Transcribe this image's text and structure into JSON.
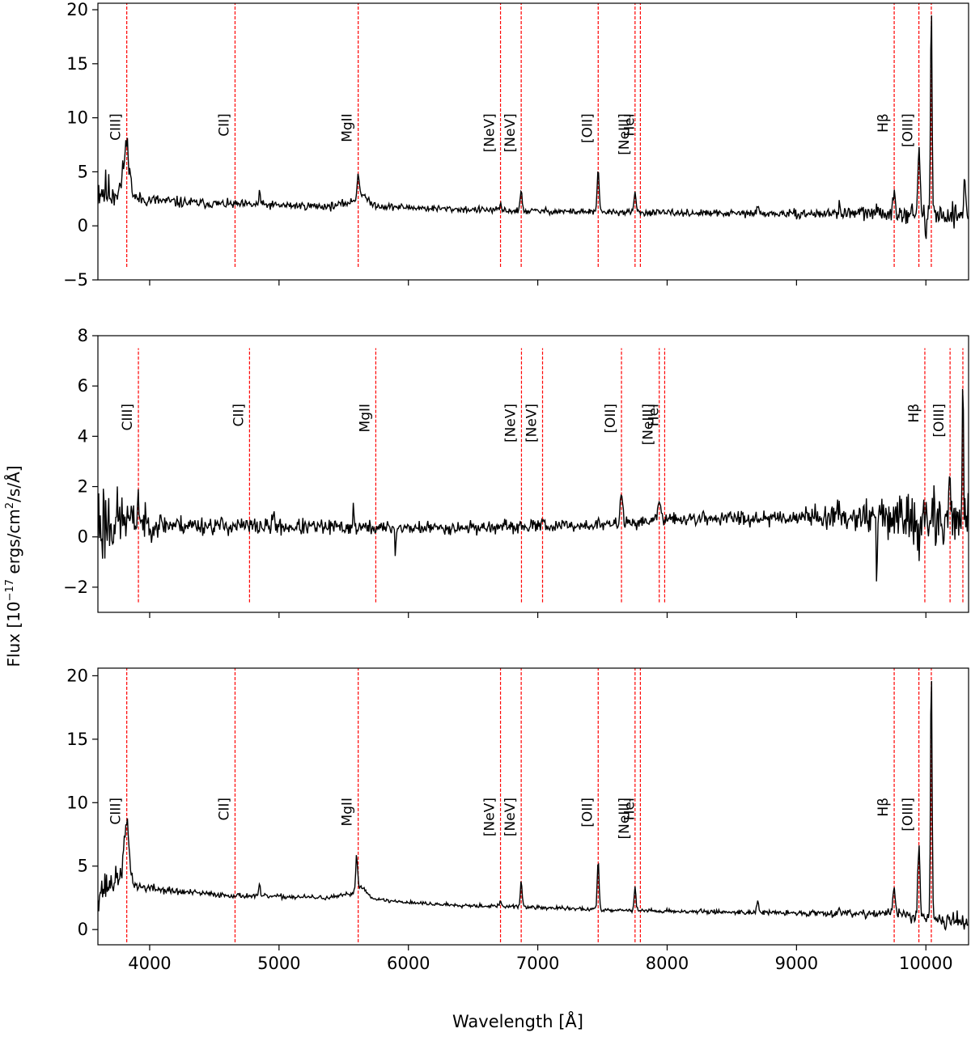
{
  "figure": {
    "ylabel": "Flux [10",
    "ylabel_exp": "−17",
    "ylabel_mid": " ergs/cm",
    "ylabel_exp2": "2",
    "ylabel_end": "/s/Å]",
    "xlabel": "Wavelength [Å]",
    "colors": {
      "spectrum": "#000000",
      "line_marker": "#ff0000",
      "axes": "#000000"
    }
  },
  "chart_data": [
    {
      "type": "line",
      "panel": "top",
      "xlim": [
        3600,
        10330
      ],
      "ylim": [
        -5,
        20.6
      ],
      "yticks": [
        -5,
        0,
        5,
        10,
        15,
        20
      ],
      "xticks": [
        4000,
        5000,
        6000,
        7000,
        8000,
        9000,
        10000
      ],
      "show_xtick_labels": false,
      "line_marker_ymin": -3.8,
      "line_marker_ymax": 20.6,
      "emission_lines": [
        {
          "label": "CIII]",
          "x": 3823
        },
        {
          "label": "CII]",
          "x": 4660
        },
        {
          "label": "MgII",
          "x": 5612
        },
        {
          "label": "[NeV]",
          "x": 6712
        },
        {
          "label": "[NeV]",
          "x": 6872
        },
        {
          "label": "[OII]",
          "x": 7467
        },
        {
          "label": "[NeIII]",
          "x": 7752
        },
        {
          "label": "HeI",
          "x": 7793
        },
        {
          "label": "Hβ",
          "x": 9755
        },
        {
          "label": "[OIII]",
          "x": 9946
        },
        {
          "label": "",
          "x": 10042
        }
      ],
      "label_y": 10.4,
      "continuum": [
        [
          3600,
          3.5
        ],
        [
          3700,
          3.0
        ],
        [
          3800,
          3.6
        ],
        [
          3900,
          2.5
        ],
        [
          4200,
          2.2
        ],
        [
          4600,
          2.0
        ],
        [
          5000,
          1.9
        ],
        [
          5400,
          1.8
        ],
        [
          5600,
          2.3
        ],
        [
          5800,
          1.8
        ],
        [
          6200,
          1.6
        ],
        [
          6800,
          1.4
        ],
        [
          7400,
          1.3
        ],
        [
          8000,
          1.2
        ],
        [
          9000,
          1.1
        ],
        [
          9700,
          1.2
        ],
        [
          10330,
          1.0
        ]
      ],
      "peaks": [
        [
          3823,
          4.2,
          20
        ],
        [
          4850,
          1.5,
          5
        ],
        [
          5612,
          2.0,
          8
        ],
        [
          5640,
          0.8,
          30
        ],
        [
          6712,
          0.6,
          6
        ],
        [
          6872,
          1.9,
          7
        ],
        [
          7467,
          4.0,
          7
        ],
        [
          7752,
          2.1,
          7
        ],
        [
          8700,
          0.6,
          8
        ],
        [
          9330,
          1.0,
          5
        ],
        [
          9755,
          2.3,
          8
        ],
        [
          9946,
          6.3,
          8
        ],
        [
          10042,
          19.0,
          6
        ],
        [
          10300,
          4.0,
          6
        ]
      ],
      "noise": [
        [
          3600,
          1.8
        ],
        [
          3900,
          0.5
        ],
        [
          4500,
          0.32
        ],
        [
          6000,
          0.25
        ],
        [
          8000,
          0.22
        ],
        [
          9000,
          0.28
        ],
        [
          10330,
          0.8
        ]
      ],
      "dips": [
        [
          10000,
          -2.5,
          5
        ]
      ],
      "seed": 11
    },
    {
      "type": "line",
      "panel": "middle",
      "xlim": [
        3600,
        10330
      ],
      "ylim": [
        -3,
        8
      ],
      "yticks": [
        -2,
        0,
        2,
        4,
        6,
        8
      ],
      "xticks": [
        4000,
        5000,
        6000,
        7000,
        8000,
        9000,
        10000
      ],
      "show_xtick_labels": false,
      "line_marker_ymin": -2.6,
      "line_marker_ymax": 7.5,
      "emission_lines": [
        {
          "label": "CIII]",
          "x": 3913
        },
        {
          "label": "CII]",
          "x": 4772
        },
        {
          "label": "MgII",
          "x": 5748
        },
        {
          "label": "[NeV]",
          "x": 6874
        },
        {
          "label": "[NeV]",
          "x": 7037
        },
        {
          "label": "[OII]",
          "x": 7647
        },
        {
          "label": "[NeIII]",
          "x": 7939
        },
        {
          "label": "HeI",
          "x": 7981
        },
        {
          "label": "Hβ",
          "x": 9992
        },
        {
          "label": "[OIII]",
          "x": 10187
        },
        {
          "label": "",
          "x": 10286
        }
      ],
      "label_y": 5.3,
      "continuum": [
        [
          3600,
          0.6
        ],
        [
          3800,
          0.7
        ],
        [
          4000,
          0.5
        ],
        [
          5000,
          0.4
        ],
        [
          6000,
          0.35
        ],
        [
          7000,
          0.4
        ],
        [
          7600,
          0.5
        ],
        [
          8000,
          0.7
        ],
        [
          9000,
          0.8
        ],
        [
          9500,
          0.85
        ],
        [
          10330,
          0.6
        ]
      ],
      "peaks": [
        [
          3913,
          1.1,
          6
        ],
        [
          4960,
          0.5,
          8
        ],
        [
          5575,
          1.2,
          3
        ],
        [
          7037,
          0.5,
          8
        ],
        [
          7647,
          1.3,
          10
        ],
        [
          7939,
          0.7,
          12
        ],
        [
          10187,
          2.5,
          6
        ],
        [
          10286,
          6.5,
          5
        ]
      ],
      "noise": [
        [
          3600,
          1.6
        ],
        [
          3850,
          0.55
        ],
        [
          4200,
          0.3
        ],
        [
          6000,
          0.2
        ],
        [
          8000,
          0.18
        ],
        [
          9000,
          0.28
        ],
        [
          9500,
          0.45
        ],
        [
          10330,
          1.0
        ]
      ],
      "dips": [
        [
          9620,
          -3.2,
          3
        ],
        [
          5900,
          -1.3,
          3
        ],
        [
          9950,
          -2.5,
          4
        ]
      ],
      "seed": 23
    },
    {
      "type": "line",
      "panel": "bottom",
      "xlim": [
        3600,
        10330
      ],
      "ylim": [
        -1.2,
        20.6
      ],
      "yticks": [
        0,
        5,
        10,
        15,
        20
      ],
      "xticks": [
        4000,
        5000,
        6000,
        7000,
        8000,
        9000,
        10000
      ],
      "show_xtick_labels": true,
      "line_marker_ymin": -1.0,
      "line_marker_ymax": 20.6,
      "emission_lines": [
        {
          "label": "CIII]",
          "x": 3823
        },
        {
          "label": "CII]",
          "x": 4660
        },
        {
          "label": "MgII",
          "x": 5612
        },
        {
          "label": "[NeV]",
          "x": 6712
        },
        {
          "label": "[NeV]",
          "x": 6872
        },
        {
          "label": "[OII]",
          "x": 7467
        },
        {
          "label": "[NeIII]",
          "x": 7752
        },
        {
          "label": "HeI",
          "x": 7793
        },
        {
          "label": "Hβ",
          "x": 9755
        },
        {
          "label": "[OIII]",
          "x": 9946
        },
        {
          "label": "",
          "x": 10042
        }
      ],
      "label_y": 10.4,
      "continuum": [
        [
          3600,
          3.0
        ],
        [
          3700,
          3.6
        ],
        [
          3800,
          4.5
        ],
        [
          3900,
          3.4
        ],
        [
          4200,
          3.0
        ],
        [
          4600,
          2.7
        ],
        [
          5000,
          2.6
        ],
        [
          5400,
          2.5
        ],
        [
          5600,
          2.9
        ],
        [
          5800,
          2.3
        ],
        [
          6200,
          2.0
        ],
        [
          6800,
          1.8
        ],
        [
          7400,
          1.6
        ],
        [
          8000,
          1.45
        ],
        [
          9000,
          1.3
        ],
        [
          9700,
          1.3
        ],
        [
          10330,
          0.6
        ]
      ],
      "peaks": [
        [
          3823,
          4.0,
          18
        ],
        [
          4850,
          1.0,
          5
        ],
        [
          5600,
          2.8,
          7
        ],
        [
          5640,
          0.6,
          30
        ],
        [
          6712,
          0.5,
          6
        ],
        [
          6872,
          2.1,
          7
        ],
        [
          7467,
          3.9,
          7
        ],
        [
          7752,
          1.8,
          7
        ],
        [
          8700,
          0.9,
          8
        ],
        [
          9330,
          0.6,
          5
        ],
        [
          9755,
          2.2,
          8
        ],
        [
          9946,
          6.0,
          8
        ],
        [
          10042,
          19.5,
          6
        ]
      ],
      "noise": [
        [
          3600,
          1.1
        ],
        [
          3900,
          0.3
        ],
        [
          4500,
          0.16
        ],
        [
          6000,
          0.12
        ],
        [
          8000,
          0.12
        ],
        [
          9000,
          0.15
        ],
        [
          10330,
          0.5
        ]
      ],
      "dips": [
        [
          10150,
          -0.8,
          6
        ]
      ],
      "seed": 37
    }
  ]
}
